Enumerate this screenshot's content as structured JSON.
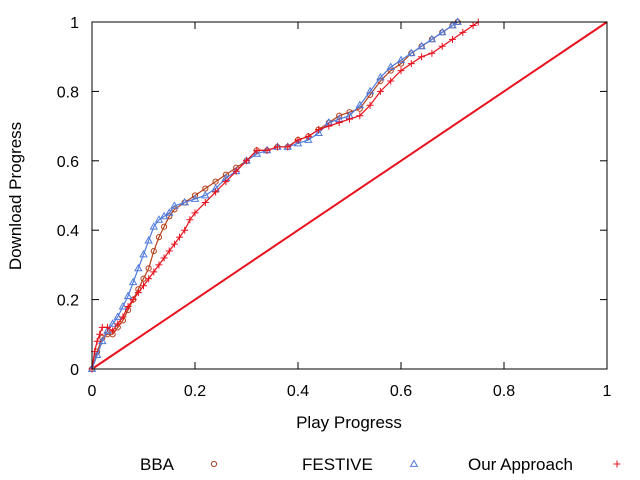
{
  "chart_data": {
    "type": "scatter",
    "xlabel": "Play Progress",
    "ylabel": "Download Progress",
    "xlim": [
      0,
      1
    ],
    "ylim": [
      0,
      1
    ],
    "xticks": [
      "0",
      "0.2",
      "0.4",
      "0.6",
      "0.8",
      "1"
    ],
    "yticks": [
      "0",
      "0.2",
      "0.4",
      "0.6",
      "0.8",
      "1"
    ],
    "grid": false,
    "legend_position": "bottom",
    "diagonal": {
      "from": [
        0,
        0
      ],
      "to": [
        1,
        1
      ],
      "color": "#e8101c"
    },
    "series": [
      {
        "name": "BBA",
        "marker": "circle",
        "color": "#b5401a",
        "points": [
          [
            0,
            0
          ],
          [
            0.01,
            0.05
          ],
          [
            0.02,
            0.09
          ],
          [
            0.03,
            0.1
          ],
          [
            0.04,
            0.1
          ],
          [
            0.05,
            0.12
          ],
          [
            0.06,
            0.14
          ],
          [
            0.07,
            0.17
          ],
          [
            0.08,
            0.2
          ],
          [
            0.09,
            0.23
          ],
          [
            0.1,
            0.26
          ],
          [
            0.11,
            0.29
          ],
          [
            0.12,
            0.34
          ],
          [
            0.13,
            0.38
          ],
          [
            0.14,
            0.41
          ],
          [
            0.15,
            0.44
          ],
          [
            0.16,
            0.46
          ],
          [
            0.18,
            0.48
          ],
          [
            0.2,
            0.5
          ],
          [
            0.22,
            0.52
          ],
          [
            0.24,
            0.54
          ],
          [
            0.26,
            0.56
          ],
          [
            0.28,
            0.58
          ],
          [
            0.3,
            0.6
          ],
          [
            0.32,
            0.63
          ],
          [
            0.34,
            0.63
          ],
          [
            0.36,
            0.64
          ],
          [
            0.38,
            0.64
          ],
          [
            0.4,
            0.66
          ],
          [
            0.42,
            0.67
          ],
          [
            0.44,
            0.69
          ],
          [
            0.46,
            0.71
          ],
          [
            0.48,
            0.73
          ],
          [
            0.5,
            0.74
          ],
          [
            0.52,
            0.75
          ],
          [
            0.54,
            0.79
          ],
          [
            0.56,
            0.83
          ],
          [
            0.58,
            0.86
          ],
          [
            0.6,
            0.88
          ],
          [
            0.62,
            0.91
          ],
          [
            0.64,
            0.93
          ],
          [
            0.66,
            0.95
          ],
          [
            0.68,
            0.97
          ],
          [
            0.7,
            0.99
          ],
          [
            0.71,
            1.0
          ]
        ]
      },
      {
        "name": "FESTIVE",
        "marker": "triangle",
        "color": "#4f7bdc",
        "points": [
          [
            0,
            0
          ],
          [
            0.01,
            0.04
          ],
          [
            0.02,
            0.08
          ],
          [
            0.03,
            0.11
          ],
          [
            0.04,
            0.13
          ],
          [
            0.05,
            0.15
          ],
          [
            0.06,
            0.18
          ],
          [
            0.07,
            0.21
          ],
          [
            0.08,
            0.25
          ],
          [
            0.09,
            0.29
          ],
          [
            0.1,
            0.33
          ],
          [
            0.11,
            0.37
          ],
          [
            0.12,
            0.41
          ],
          [
            0.13,
            0.43
          ],
          [
            0.14,
            0.44
          ],
          [
            0.15,
            0.45
          ],
          [
            0.16,
            0.47
          ],
          [
            0.18,
            0.48
          ],
          [
            0.2,
            0.49
          ],
          [
            0.22,
            0.5
          ],
          [
            0.24,
            0.52
          ],
          [
            0.26,
            0.55
          ],
          [
            0.28,
            0.57
          ],
          [
            0.3,
            0.6
          ],
          [
            0.32,
            0.62
          ],
          [
            0.34,
            0.63
          ],
          [
            0.36,
            0.64
          ],
          [
            0.38,
            0.64
          ],
          [
            0.4,
            0.65
          ],
          [
            0.42,
            0.66
          ],
          [
            0.44,
            0.68
          ],
          [
            0.46,
            0.71
          ],
          [
            0.48,
            0.72
          ],
          [
            0.5,
            0.73
          ],
          [
            0.52,
            0.76
          ],
          [
            0.54,
            0.8
          ],
          [
            0.56,
            0.84
          ],
          [
            0.58,
            0.87
          ],
          [
            0.6,
            0.89
          ],
          [
            0.62,
            0.91
          ],
          [
            0.64,
            0.93
          ],
          [
            0.66,
            0.95
          ],
          [
            0.68,
            0.97
          ],
          [
            0.7,
            0.99
          ],
          [
            0.71,
            1.0
          ]
        ]
      },
      {
        "name": "Our Approach",
        "marker": "plus",
        "color": "#e8101c",
        "points": [
          [
            0,
            0
          ],
          [
            0.005,
            0.05
          ],
          [
            0.01,
            0.08
          ],
          [
            0.015,
            0.1
          ],
          [
            0.02,
            0.12
          ],
          [
            0.03,
            0.12
          ],
          [
            0.04,
            0.11
          ],
          [
            0.05,
            0.13
          ],
          [
            0.06,
            0.15
          ],
          [
            0.07,
            0.18
          ],
          [
            0.08,
            0.2
          ],
          [
            0.09,
            0.22
          ],
          [
            0.1,
            0.24
          ],
          [
            0.11,
            0.26
          ],
          [
            0.12,
            0.28
          ],
          [
            0.13,
            0.3
          ],
          [
            0.14,
            0.32
          ],
          [
            0.15,
            0.34
          ],
          [
            0.16,
            0.36
          ],
          [
            0.17,
            0.38
          ],
          [
            0.18,
            0.4
          ],
          [
            0.19,
            0.43
          ],
          [
            0.2,
            0.45
          ],
          [
            0.22,
            0.48
          ],
          [
            0.24,
            0.51
          ],
          [
            0.26,
            0.54
          ],
          [
            0.28,
            0.57
          ],
          [
            0.3,
            0.6
          ],
          [
            0.32,
            0.63
          ],
          [
            0.34,
            0.63
          ],
          [
            0.36,
            0.64
          ],
          [
            0.38,
            0.64
          ],
          [
            0.4,
            0.66
          ],
          [
            0.42,
            0.67
          ],
          [
            0.44,
            0.69
          ],
          [
            0.46,
            0.7
          ],
          [
            0.48,
            0.71
          ],
          [
            0.5,
            0.72
          ],
          [
            0.52,
            0.73
          ],
          [
            0.54,
            0.76
          ],
          [
            0.56,
            0.8
          ],
          [
            0.58,
            0.83
          ],
          [
            0.6,
            0.86
          ],
          [
            0.62,
            0.88
          ],
          [
            0.64,
            0.9
          ],
          [
            0.66,
            0.91
          ],
          [
            0.68,
            0.93
          ],
          [
            0.7,
            0.95
          ],
          [
            0.72,
            0.97
          ],
          [
            0.74,
            0.99
          ],
          [
            0.75,
            1.0
          ]
        ]
      }
    ]
  }
}
